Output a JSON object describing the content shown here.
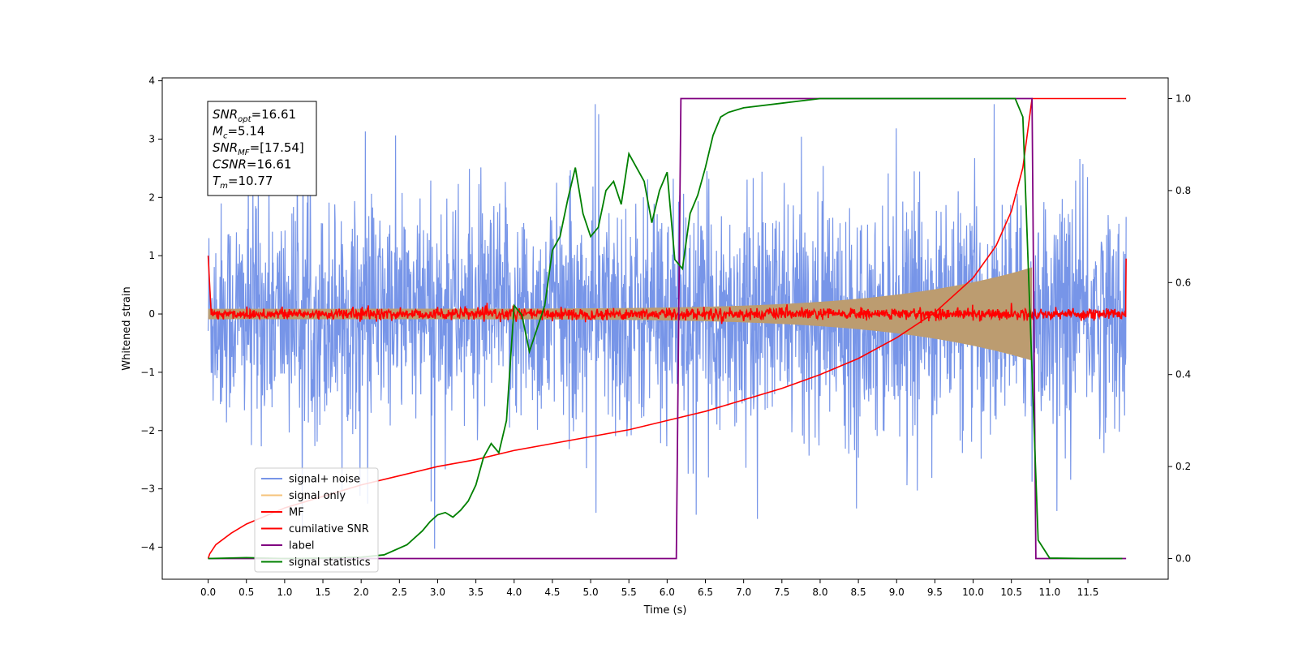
{
  "chart_data": {
    "type": "line",
    "xlabel": "Time (s)",
    "ylabel": "Whitened strain",
    "xlim": [
      -0.6,
      12.55
    ],
    "ylim": [
      -4.55,
      4.05
    ],
    "y2lim": [
      -0.045,
      1.045
    ],
    "x_ticks": [
      "0.0",
      "0.5",
      "1.0",
      "1.5",
      "2.0",
      "2.5",
      "3.0",
      "3.5",
      "4.0",
      "4.5",
      "5.0",
      "5.5",
      "6.0",
      "6.5",
      "7.0",
      "7.5",
      "8.0",
      "8.5",
      "9.0",
      "9.5",
      "10.0",
      "10.5",
      "11.0",
      "11.5"
    ],
    "y_ticks": [
      "4",
      "3",
      "2",
      "1",
      "0",
      "−1",
      "−2",
      "−3",
      "−4"
    ],
    "y2_ticks": [
      "1.0",
      "0.8",
      "0.6",
      "0.4",
      "0.2",
      "0.0"
    ],
    "grid": false,
    "legend_position": "lower-left",
    "annotation": {
      "lines": [
        {
          "base": "SNR",
          "sub": "opt",
          "value": "=16.61"
        },
        {
          "base": "M",
          "sub": "c",
          "value": "=5.14"
        },
        {
          "base": "SNR",
          "sub": "MF",
          "value": "=[17.54]"
        },
        {
          "base": "CSNR",
          "sub": "",
          "value": "=16.61"
        },
        {
          "base": "T",
          "sub": "m",
          "value": "=10.77"
        }
      ]
    },
    "series": [
      {
        "name": "signal+ noise",
        "color": "#7795e8",
        "axis": "left",
        "kind": "noise",
        "x_range": [
          0.0,
          12.0
        ],
        "amplitude": 1.1,
        "envelope_range": [
          -4.2,
          3.6
        ]
      },
      {
        "name": "signal only",
        "color": "#f5c37a",
        "axis": "left",
        "kind": "chirp",
        "x_range": [
          0.0,
          10.77
        ],
        "fill_color": "#bc9c70",
        "peak_amplitude": 0.8
      },
      {
        "name": "MF",
        "color": "#ff0000",
        "axis": "left",
        "kind": "mf",
        "x_range": [
          0.0,
          12.0
        ],
        "values_edges": [
          1.0,
          0.95
        ]
      },
      {
        "name": "cumilative SNR",
        "color": "#ff0000",
        "axis": "right",
        "kind": "line",
        "x": [
          0.0,
          0.02,
          0.1,
          0.3,
          0.5,
          1.0,
          1.5,
          2.0,
          2.5,
          3.0,
          3.5,
          4.0,
          4.5,
          5.0,
          5.5,
          6.0,
          6.5,
          7.0,
          7.5,
          8.0,
          8.5,
          9.0,
          9.5,
          10.0,
          10.3,
          10.5,
          10.65,
          10.77,
          12.0
        ],
        "values": [
          0.0,
          0.01,
          0.03,
          0.055,
          0.075,
          0.11,
          0.135,
          0.16,
          0.18,
          0.2,
          0.215,
          0.235,
          0.25,
          0.265,
          0.28,
          0.3,
          0.32,
          0.345,
          0.37,
          0.4,
          0.435,
          0.48,
          0.535,
          0.61,
          0.68,
          0.755,
          0.85,
          1.0,
          1.0
        ]
      },
      {
        "name": "label",
        "color": "#800080",
        "axis": "right",
        "kind": "line",
        "x": [
          0.0,
          6.12,
          6.18,
          10.77,
          10.82,
          12.0
        ],
        "values": [
          0.0,
          0.0,
          1.0,
          1.0,
          0.0,
          0.0
        ]
      },
      {
        "name": "signal statistics",
        "color": "#008000",
        "axis": "right",
        "kind": "line",
        "x": [
          0.0,
          0.5,
          1.0,
          1.5,
          2.0,
          2.3,
          2.6,
          2.8,
          2.9,
          3.0,
          3.1,
          3.2,
          3.3,
          3.4,
          3.5,
          3.6,
          3.7,
          3.8,
          3.9,
          4.0,
          4.05,
          4.1,
          4.2,
          4.3,
          4.4,
          4.5,
          4.6,
          4.7,
          4.8,
          4.9,
          5.0,
          5.1,
          5.2,
          5.3,
          5.4,
          5.5,
          5.6,
          5.7,
          5.8,
          5.9,
          6.0,
          6.1,
          6.2,
          6.3,
          6.4,
          6.5,
          6.6,
          6.7,
          6.8,
          7.0,
          7.5,
          8.0,
          8.5,
          9.0,
          9.5,
          10.0,
          10.3,
          10.55,
          10.65,
          10.75,
          10.85,
          11.0,
          11.5,
          11.95
        ],
        "values": [
          0.0,
          0.002,
          0.0,
          0.001,
          0.003,
          0.008,
          0.03,
          0.06,
          0.08,
          0.095,
          0.1,
          0.09,
          0.105,
          0.125,
          0.16,
          0.22,
          0.25,
          0.23,
          0.3,
          0.55,
          0.54,
          0.53,
          0.45,
          0.5,
          0.55,
          0.67,
          0.7,
          0.78,
          0.85,
          0.75,
          0.7,
          0.72,
          0.8,
          0.82,
          0.77,
          0.88,
          0.85,
          0.82,
          0.73,
          0.8,
          0.84,
          0.65,
          0.63,
          0.75,
          0.79,
          0.85,
          0.92,
          0.96,
          0.97,
          0.98,
          0.99,
          1.0,
          1.0,
          1.0,
          1.0,
          1.0,
          1.0,
          1.0,
          0.96,
          0.5,
          0.04,
          0.001,
          0.0,
          0.0
        ]
      }
    ]
  }
}
